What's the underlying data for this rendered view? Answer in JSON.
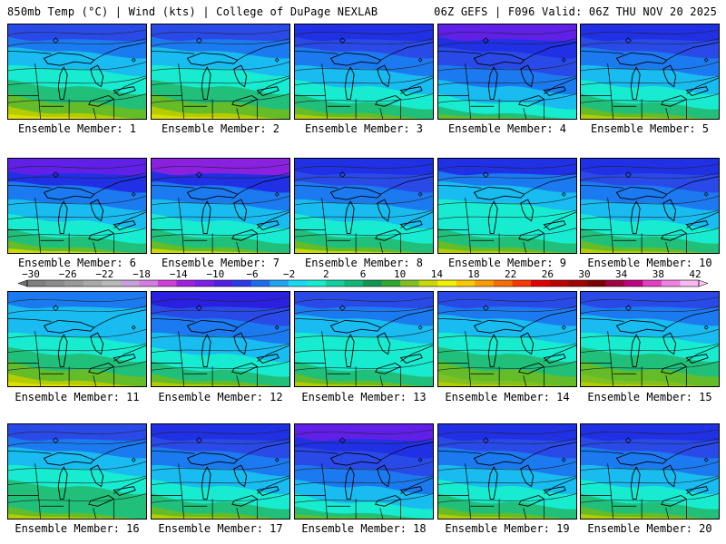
{
  "header": {
    "left": "850mb Temp (°C) | Wind (kts) | College of DuPage NEXLAB",
    "right": "06Z GEFS | F096 Valid: 06Z THU NOV 20 2025"
  },
  "colorbar": {
    "labels": [
      "−30",
      "−26",
      "−22",
      "−18",
      "−14",
      "−10",
      "−6",
      "−2",
      "2",
      "6",
      "10",
      "14",
      "18",
      "22",
      "26",
      "30",
      "34",
      "38",
      "42"
    ],
    "colors": [
      "#7f7f7f",
      "#8c8c8c",
      "#9a9a9a",
      "#a8a8a8",
      "#b8b8b8",
      "#c6a0d8",
      "#d27ee0",
      "#d040d8",
      "#a020e0",
      "#7a20e8",
      "#5020e8",
      "#2a3aea",
      "#1c6cf0",
      "#1ea4f4",
      "#18d8f4",
      "#18ecd0",
      "#12d0a0",
      "#10b878",
      "#109850",
      "#30a830",
      "#80c020",
      "#c8d800",
      "#f0f000",
      "#f8c800",
      "#f89c00",
      "#f86c00",
      "#f83800",
      "#e00000",
      "#c00000",
      "#a00000",
      "#800000",
      "#a00040",
      "#c00080",
      "#e040c0",
      "#f080e0",
      "#f8b8f0"
    ]
  },
  "panels": [
    {
      "caption": "Ensemble Member: 1",
      "colors": [
        "#2a4ae8",
        "#1c7af0",
        "#18bcf0",
        "#18ecd0",
        "#20c07a",
        "#64bc28",
        "#b4cc00",
        "#e0e000"
      ]
    },
    {
      "caption": "Ensemble Member: 2",
      "colors": [
        "#2a4ae8",
        "#1c7af0",
        "#18bcf0",
        "#18ecd0",
        "#20c07a",
        "#64bc28",
        "#b4cc00",
        "#e0e000"
      ]
    },
    {
      "caption": "Ensemble Member: 3",
      "colors": [
        "#2030e4",
        "#2a4ae8",
        "#1c7af0",
        "#18bcf0",
        "#18ecd0",
        "#20c07a",
        "#64bc28",
        "#b4cc00"
      ]
    },
    {
      "caption": "Ensemble Member: 4",
      "colors": [
        "#6020e8",
        "#2030e4",
        "#2a4ae8",
        "#1c7af0",
        "#18bcf0",
        "#18ecd0",
        "#20c07a",
        "#64bc28"
      ]
    },
    {
      "caption": "Ensemble Member: 5",
      "colors": [
        "#2030e4",
        "#2a4ae8",
        "#1c7af0",
        "#18bcf0",
        "#18ecd0",
        "#20c07a",
        "#64bc28",
        "#b4cc00"
      ]
    },
    {
      "caption": "Ensemble Member: 6",
      "colors": [
        "#6020e8",
        "#2030e4",
        "#1c7af0",
        "#18bcf0",
        "#18ecd0",
        "#20c07a",
        "#64bc28",
        "#c8d800"
      ]
    },
    {
      "caption": "Ensemble Member: 7",
      "colors": [
        "#8a20e0",
        "#2030e4",
        "#1c7af0",
        "#18bcf0",
        "#18ecd0",
        "#20c07a",
        "#64bc28",
        "#c8d800"
      ]
    },
    {
      "caption": "Ensemble Member: 8",
      "colors": [
        "#2030e4",
        "#2a4ae8",
        "#1c7af0",
        "#18bcf0",
        "#18ecd0",
        "#20c07a",
        "#64bc28",
        "#c8d800"
      ]
    },
    {
      "caption": "Ensemble Member: 9",
      "colors": [
        "#2030e4",
        "#1c7af0",
        "#18bcf0",
        "#18ecd0",
        "#18ecd0",
        "#20c07a",
        "#64bc28",
        "#b4cc00"
      ]
    },
    {
      "caption": "Ensemble Member: 10",
      "colors": [
        "#2030e4",
        "#2a4ae8",
        "#1c7af0",
        "#18bcf0",
        "#18ecd0",
        "#20c07a",
        "#64bc28",
        "#b4cc00"
      ]
    },
    {
      "caption": "Ensemble Member: 11",
      "colors": [
        "#1c7af0",
        "#18bcf0",
        "#18bcf0",
        "#18ecd0",
        "#20c07a",
        "#64bc28",
        "#b4cc00",
        "#e0e000"
      ]
    },
    {
      "caption": "Ensemble Member: 12",
      "colors": [
        "#2a20e0",
        "#2a4ae8",
        "#1c7af0",
        "#18bcf0",
        "#18ecd0",
        "#20c07a",
        "#64bc28",
        "#b4cc00"
      ]
    },
    {
      "caption": "Ensemble Member: 13",
      "colors": [
        "#2a4ae8",
        "#1c7af0",
        "#18bcf0",
        "#18ecd0",
        "#18ecd0",
        "#20c07a",
        "#64bc28",
        "#b4cc00"
      ]
    },
    {
      "caption": "Ensemble Member: 14",
      "colors": [
        "#2a4ae8",
        "#1c7af0",
        "#18bcf0",
        "#18ecd0",
        "#20c07a",
        "#64bc28",
        "#80c020",
        "#b4cc00"
      ]
    },
    {
      "caption": "Ensemble Member: 15",
      "colors": [
        "#2a4ae8",
        "#1c7af0",
        "#18bcf0",
        "#18ecd0",
        "#20c07a",
        "#64bc28",
        "#80c020",
        "#b4cc00"
      ]
    },
    {
      "caption": "Ensemble Member: 16",
      "colors": [
        "#2a4ae8",
        "#1c7af0",
        "#18bcf0",
        "#18ecd0",
        "#20c07a",
        "#20c07a",
        "#64bc28",
        "#b4cc00"
      ]
    },
    {
      "caption": "Ensemble Member: 17",
      "colors": [
        "#2030e4",
        "#2a4ae8",
        "#1c7af0",
        "#18bcf0",
        "#18ecd0",
        "#20c07a",
        "#64bc28",
        "#b4cc00"
      ]
    },
    {
      "caption": "Ensemble Member: 18",
      "colors": [
        "#6020e8",
        "#2030e4",
        "#2a4ae8",
        "#1c7af0",
        "#18bcf0",
        "#18ecd0",
        "#20c07a",
        "#64bc28"
      ]
    },
    {
      "caption": "Ensemble Member: 19",
      "colors": [
        "#2030e4",
        "#2a4ae8",
        "#1c7af0",
        "#18bcf0",
        "#18ecd0",
        "#20c07a",
        "#64bc28",
        "#b4cc00"
      ]
    },
    {
      "caption": "Ensemble Member: 20",
      "colors": [
        "#2030e4",
        "#2a4ae8",
        "#1c7af0",
        "#18bcf0",
        "#18ecd0",
        "#20c07a",
        "#64bc28",
        "#b4cc00"
      ]
    }
  ]
}
